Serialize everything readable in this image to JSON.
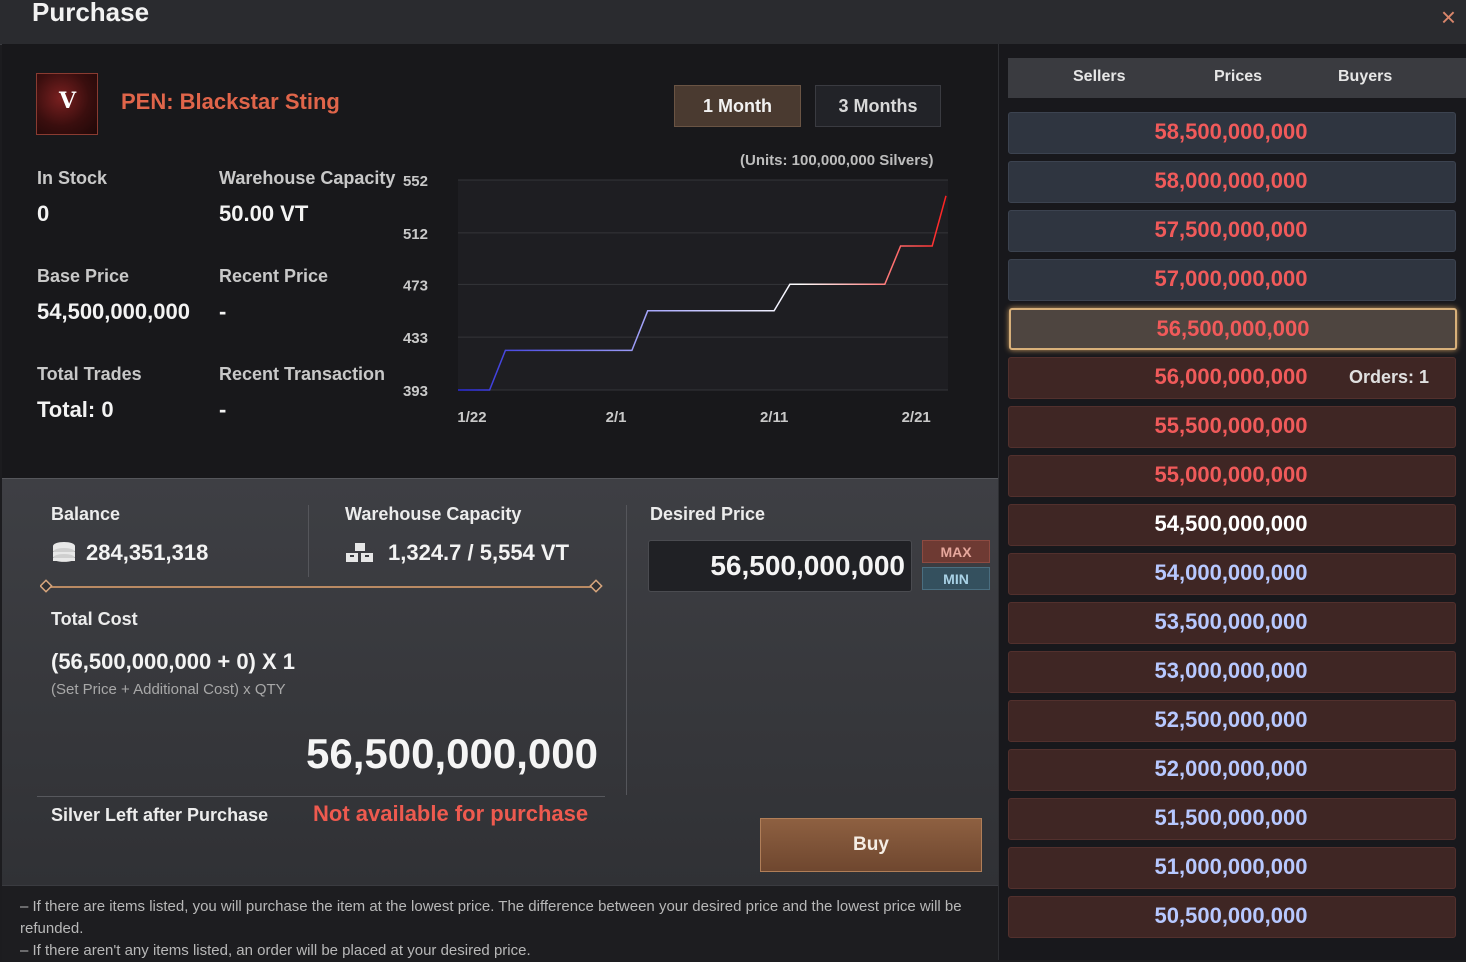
{
  "window": {
    "title": "Purchase",
    "close_icon": "×"
  },
  "item": {
    "name": "PEN: Blackstar Sting",
    "icon_glyph": "V"
  },
  "tabs": {
    "one_month": "1 Month",
    "three_months": "3 Months"
  },
  "stats": {
    "in_stock_label": "In Stock",
    "in_stock_value": "0",
    "warehouse_capacity_label": "Warehouse Capacity",
    "warehouse_capacity_value": "50.00 VT",
    "base_price_label": "Base Price",
    "base_price_value": "54,500,000,000",
    "recent_price_label": "Recent Price",
    "recent_price_value": "-",
    "total_trades_label": "Total Trades",
    "total_trades_value": "Total: 0",
    "recent_transaction_label": "Recent Transaction",
    "recent_transaction_value": "-"
  },
  "chart_data": {
    "type": "line",
    "units_note": "(Units: 100,000,000 Silvers)",
    "x_ticks": [
      "1/22",
      "2/1",
      "2/11",
      "2/21"
    ],
    "y_ticks": [
      552,
      512,
      473,
      433,
      393
    ],
    "ylim": [
      393,
      552
    ],
    "x": [
      "1/22",
      "1/24",
      "1/25",
      "2/2",
      "2/3",
      "2/11",
      "2/12",
      "2/18",
      "2/19",
      "2/21",
      "2/22"
    ],
    "series": [
      {
        "values": [
          393,
          393,
          423,
          423,
          453,
          453,
          473,
          473,
          502,
          502,
          540
        ]
      }
    ]
  },
  "purchase": {
    "balance_label": "Balance",
    "balance_value": "284,351,318",
    "warehouse_label": "Warehouse Capacity",
    "warehouse_value": "1,324.7 / 5,554 VT",
    "desired_price_label": "Desired Price",
    "desired_price_value": "56,500,000,000",
    "max_label": "MAX",
    "min_label": "MIN",
    "total_cost_label": "Total Cost",
    "formula": "(56,500,000,000 + 0) X 1",
    "formula_hint": "(Set Price + Additional Cost) x QTY",
    "total_amount": "56,500,000,000",
    "silver_left_label": "Silver Left after Purchase",
    "silver_left_value": "Not available for purchase",
    "buy_label": "Buy"
  },
  "notes": [
    "– If there are items listed, you will purchase the item at the lowest price. The difference between your desired price and the lowest price will be refunded.",
    "– If there aren't any items listed, an order will be placed at your desired price."
  ],
  "orderbook": {
    "headers": {
      "sellers": "Sellers",
      "prices": "Prices",
      "buyers": "Buyers"
    },
    "colors": {
      "seller_price": "#f05a5a",
      "buyer_price_high": "#f05a5a",
      "base_price": "#ffffff",
      "buyer_price_low": "#b7c8ff",
      "selected_border": "#d8b07a"
    },
    "rows": [
      {
        "price": "58,500,000,000",
        "side": "seller",
        "color": "#f05a5a",
        "orders": ""
      },
      {
        "price": "58,000,000,000",
        "side": "seller",
        "color": "#f05a5a",
        "orders": ""
      },
      {
        "price": "57,500,000,000",
        "side": "seller",
        "color": "#f05a5a",
        "orders": ""
      },
      {
        "price": "57,000,000,000",
        "side": "seller",
        "color": "#f05a5a",
        "orders": ""
      },
      {
        "price": "56,500,000,000",
        "side": "selected",
        "color": "#f05a5a",
        "orders": ""
      },
      {
        "price": "56,000,000,000",
        "side": "buyer",
        "color": "#f05a5a",
        "orders": "Orders: 1"
      },
      {
        "price": "55,500,000,000",
        "side": "buyer",
        "color": "#f05a5a",
        "orders": ""
      },
      {
        "price": "55,000,000,000",
        "side": "buyer",
        "color": "#f05a5a",
        "orders": ""
      },
      {
        "price": "54,500,000,000",
        "side": "buyer",
        "color": "#ffffff",
        "orders": ""
      },
      {
        "price": "54,000,000,000",
        "side": "buyer",
        "color": "#b7c8ff",
        "orders": ""
      },
      {
        "price": "53,500,000,000",
        "side": "buyer",
        "color": "#b7c8ff",
        "orders": ""
      },
      {
        "price": "53,000,000,000",
        "side": "buyer",
        "color": "#b7c8ff",
        "orders": ""
      },
      {
        "price": "52,500,000,000",
        "side": "buyer",
        "color": "#b7c8ff",
        "orders": ""
      },
      {
        "price": "52,000,000,000",
        "side": "buyer",
        "color": "#b7c8ff",
        "orders": ""
      },
      {
        "price": "51,500,000,000",
        "side": "buyer",
        "color": "#b7c8ff",
        "orders": ""
      },
      {
        "price": "51,000,000,000",
        "side": "buyer",
        "color": "#b7c8ff",
        "orders": ""
      },
      {
        "price": "50,500,000,000",
        "side": "buyer",
        "color": "#b7c8ff",
        "orders": ""
      }
    ]
  }
}
